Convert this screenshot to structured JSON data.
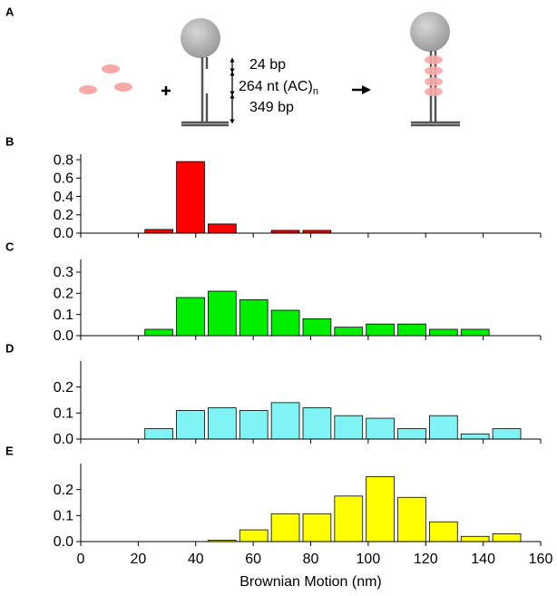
{
  "diagram": {
    "label": "A",
    "annotations": [
      {
        "text": "24 bp"
      },
      {
        "text": "264 nt (AC)",
        "subscript": "n"
      },
      {
        "text": "349 bp"
      }
    ]
  },
  "chart_data": [
    {
      "type": "histogram",
      "panel": "B",
      "color": "#ff0000",
      "bins": [
        22,
        33,
        44,
        55,
        66,
        77,
        88,
        99,
        110,
        121,
        132,
        143,
        154
      ],
      "values": [
        0.04,
        0.78,
        0.1,
        0,
        0.03,
        0.03,
        0,
        0,
        0,
        0,
        0,
        0
      ],
      "xlim": [
        0,
        160
      ],
      "xticks": [
        0,
        20,
        40,
        60,
        80,
        100,
        120,
        140,
        160
      ],
      "ylim": [
        0,
        0.86
      ],
      "yticks": [
        {
          "value": 0,
          "label": "0.0"
        },
        0.2,
        0.4,
        0.6,
        0.8
      ]
    },
    {
      "type": "histogram",
      "panel": "C",
      "color": "#00ee00",
      "bins": [
        22,
        33,
        44,
        55,
        66,
        77,
        88,
        99,
        110,
        121,
        132,
        143,
        154
      ],
      "values": [
        0.03,
        0.18,
        0.21,
        0.17,
        0.12,
        0.08,
        0.04,
        0.055,
        0.055,
        0.03,
        0.03,
        0
      ],
      "xlim": [
        0,
        160
      ],
      "xticks": [
        0,
        20,
        40,
        60,
        80,
        100,
        120,
        140,
        160
      ],
      "ylim": [
        0,
        0.36
      ],
      "yticks": [
        {
          "value": 0,
          "label": "0.0"
        },
        0.1,
        0.2,
        0.3
      ]
    },
    {
      "type": "histogram",
      "panel": "D",
      "color": "#80f4f4",
      "bins": [
        22,
        33,
        44,
        55,
        66,
        77,
        88,
        99,
        110,
        121,
        132,
        143,
        154
      ],
      "values": [
        0.04,
        0.11,
        0.12,
        0.11,
        0.14,
        0.12,
        0.09,
        0.08,
        0.04,
        0.09,
        0.02,
        0.04
      ],
      "xlim": [
        0,
        160
      ],
      "xticks": [
        0,
        20,
        40,
        60,
        80,
        100,
        120,
        140,
        160
      ],
      "ylim": [
        0,
        0.3
      ],
      "yticks": [
        {
          "value": 0,
          "label": "0.0"
        },
        0.1,
        0.2
      ]
    },
    {
      "type": "histogram",
      "panel": "E",
      "color": "#ffff00",
      "bins": [
        22,
        33,
        44,
        55,
        66,
        77,
        88,
        99,
        110,
        121,
        132,
        143,
        154
      ],
      "values": [
        0,
        0,
        0.005,
        0.045,
        0.107,
        0.107,
        0.175,
        0.25,
        0.17,
        0.076,
        0.02,
        0.03
      ],
      "xlim": [
        0,
        160
      ],
      "xticks": [
        0,
        20,
        40,
        60,
        80,
        100,
        120,
        140,
        160
      ],
      "xlabel": "Brownian Motion (nm)",
      "ylim": [
        0,
        0.3
      ],
      "yticks": [
        {
          "value": 0,
          "label": "0.0"
        },
        0.1,
        0.2
      ]
    }
  ]
}
